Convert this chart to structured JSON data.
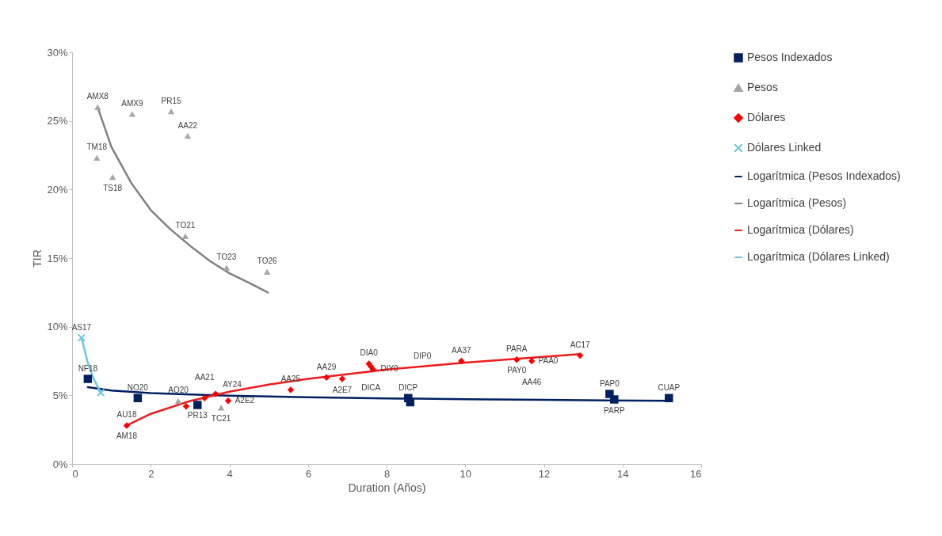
{
  "chart_data": {
    "type": "scatter",
    "xlabel": "Duration (Años)",
    "ylabel": "TIR",
    "xlim": [
      0,
      16
    ],
    "xticks": [
      0,
      2,
      4,
      6,
      8,
      10,
      12,
      14,
      16
    ],
    "ylim": [
      0,
      30
    ],
    "yticks": [
      {
        "value": 0,
        "label": "0%"
      },
      {
        "value": 5,
        "label": "5%"
      },
      {
        "value": 10,
        "label": "10%"
      },
      {
        "value": 15,
        "label": "15%"
      },
      {
        "value": 20,
        "label": "20%"
      },
      {
        "value": 25,
        "label": "25%"
      },
      {
        "value": 30,
        "label": "30%"
      }
    ],
    "grid": false,
    "legend": "right",
    "series": [
      {
        "name": "Pesos Indexados",
        "marker": "square",
        "color": "#002060",
        "x": [
          0.4,
          1.67,
          3.19,
          8.55,
          8.6,
          13.67,
          13.79,
          15.18
        ],
        "values": [
          6.2,
          4.8,
          4.3,
          4.8,
          4.5,
          5.1,
          4.7,
          4.8
        ]
      },
      {
        "name": "Pesos",
        "marker": "triangle",
        "color": "#a6a6a6",
        "x": [
          0.65,
          1.53,
          2.52,
          2.94,
          0.63,
          1.03,
          2.88,
          3.93,
          4.96,
          2.7,
          3.79
        ],
        "values": [
          26.0,
          25.5,
          25.7,
          23.9,
          22.3,
          20.9,
          16.6,
          14.3,
          14.0,
          4.6,
          4.1
        ]
      },
      {
        "name": "Dólares",
        "marker": "diamond",
        "color": "#ff0000",
        "x": [
          1.39,
          2.9,
          3.37,
          3.65,
          3.97,
          5.56,
          6.47,
          6.87,
          7.55,
          7.6,
          7.65,
          9.9,
          11.31,
          11.69,
          12.92
        ],
        "values": [
          2.8,
          4.2,
          4.8,
          5.1,
          4.6,
          5.4,
          6.3,
          6.2,
          7.3,
          7.1,
          6.9,
          7.5,
          7.6,
          7.5,
          7.9
        ]
      },
      {
        "name": "Dólares Linked",
        "marker": "cross",
        "color": "#6ec6e0",
        "x": [
          0.24,
          0.73
        ],
        "values": [
          9.2,
          5.2
        ]
      },
      {
        "name": "Logarítmica (Pesos Indexados)",
        "type": "line",
        "color": "#002060",
        "x": [
          0.4,
          1,
          2,
          4,
          6,
          8,
          10,
          12,
          15.2
        ],
        "values": [
          5.6,
          5.35,
          5.16,
          4.97,
          4.86,
          4.78,
          4.72,
          4.67,
          4.6
        ]
      },
      {
        "name": "Logarítmica (Pesos)",
        "type": "line",
        "color": "#808080",
        "x": [
          0.65,
          1,
          1.5,
          2,
          2.5,
          3,
          3.5,
          4,
          4.5,
          4.98
        ],
        "values": [
          26.0,
          23.1,
          20.5,
          18.5,
          17.1,
          15.9,
          14.8,
          13.9,
          13.2,
          12.5
        ]
      },
      {
        "name": "Logarítmica (Dólares)",
        "type": "line",
        "color": "#ee1c1c",
        "x": [
          1.39,
          2,
          3,
          4,
          5,
          6,
          8,
          10,
          12.92
        ],
        "values": [
          2.8,
          3.65,
          4.59,
          5.26,
          5.78,
          6.2,
          6.88,
          7.39,
          8.0
        ]
      },
      {
        "name": "Logarítmica (Dólares Linked)",
        "type": "line",
        "color": "#6ec6e0",
        "x": [
          0.24,
          0.4,
          0.55,
          0.73
        ],
        "values": [
          9.2,
          7.36,
          6.2,
          5.2
        ]
      }
    ],
    "annotations": [
      {
        "text": "AMX8",
        "x": 0.65,
        "y": 26.0
      },
      {
        "text": "AMX9",
        "x": 1.53,
        "y": 25.5
      },
      {
        "text": "PR15",
        "x": 2.52,
        "y": 25.7
      },
      {
        "text": "AA22",
        "x": 2.94,
        "y": 23.9
      },
      {
        "text": "TM18",
        "x": 0.63,
        "y": 22.3
      },
      {
        "text": "TS18",
        "x": 1.03,
        "y": 20.9
      },
      {
        "text": "TO21",
        "x": 2.88,
        "y": 16.6
      },
      {
        "text": "TO23",
        "x": 3.93,
        "y": 14.3
      },
      {
        "text": "TO26",
        "x": 4.96,
        "y": 14.0
      },
      {
        "text": "AS17",
        "x": 0.24,
        "y": 9.2
      },
      {
        "text": "NF18",
        "x": 0.4,
        "y": 6.2
      },
      {
        "text": "NO20",
        "x": 1.67,
        "y": 4.8
      },
      {
        "text": "PR13",
        "x": 3.19,
        "y": 4.3
      },
      {
        "text": "TC21",
        "x": 3.79,
        "y": 4.1
      },
      {
        "text": "AU18",
        "x": 1.39,
        "y": 2.8
      },
      {
        "text": "AM18",
        "x": 1.39,
        "y": 2.8
      },
      {
        "text": "AO20",
        "x": 2.7,
        "y": 4.6
      },
      {
        "text": "AA21",
        "x": 3.37,
        "y": 4.8
      },
      {
        "text": "AY24",
        "x": 3.65,
        "y": 5.1
      },
      {
        "text": "A2E2",
        "x": 3.97,
        "y": 4.6
      },
      {
        "text": "AA25",
        "x": 5.56,
        "y": 5.4
      },
      {
        "text": "AA29",
        "x": 6.47,
        "y": 6.3
      },
      {
        "text": "A2E7",
        "x": 6.87,
        "y": 6.2
      },
      {
        "text": "DIA0",
        "x": 7.55,
        "y": 7.3
      },
      {
        "text": "DICA",
        "x": 7.6,
        "y": 7.1
      },
      {
        "text": "DIY0",
        "x": 7.65,
        "y": 6.9
      },
      {
        "text": "DIP0",
        "x": 8.91,
        "y": 7.1
      },
      {
        "text": "DICP",
        "x": 8.55,
        "y": 4.8
      },
      {
        "text": "AA37",
        "x": 9.9,
        "y": 7.5
      },
      {
        "text": "PARA",
        "x": 11.31,
        "y": 7.6
      },
      {
        "text": "PAY0",
        "x": 11.31,
        "y": 7.6
      },
      {
        "text": "PAA0",
        "x": 11.69,
        "y": 7.5
      },
      {
        "text": "AA46",
        "x": 11.69,
        "y": 7.5
      },
      {
        "text": "AC17",
        "x": 12.92,
        "y": 7.9
      },
      {
        "text": "PAP0",
        "x": 13.67,
        "y": 5.1
      },
      {
        "text": "PARP",
        "x": 13.79,
        "y": 4.7
      },
      {
        "text": "CUAP",
        "x": 15.18,
        "y": 4.8
      }
    ]
  }
}
